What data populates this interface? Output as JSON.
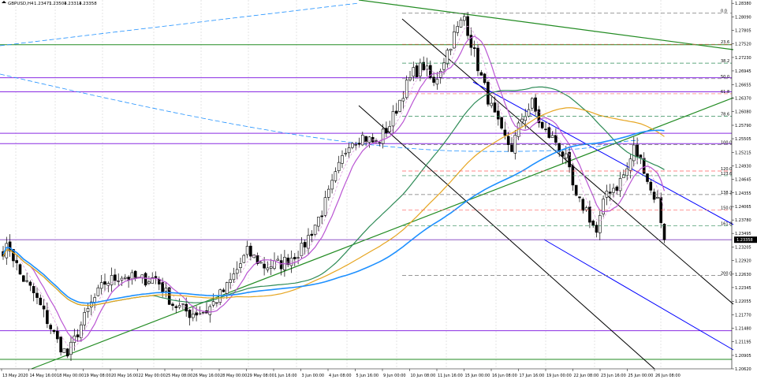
{
  "header": {
    "symbol": "GBPUSD,H4",
    "bid": "1.23471",
    "high": "1.23504",
    "low": "1.23314",
    "close": "1.23358"
  },
  "current_price_label": "1.23358",
  "chart_data": {
    "type": "candlestick",
    "title": "",
    "symbol": "GBPUSD",
    "timeframe": "H4",
    "ylim": [
      1.2062,
      1.2845
    ],
    "yticks": [
      "1.28380",
      "1.28090",
      "1.27805",
      "1.27520",
      "1.27230",
      "1.26945",
      "1.26655",
      "1.26370",
      "1.26080",
      "1.25790",
      "1.25505",
      "1.25215",
      "1.24930",
      "1.24645",
      "1.24355",
      "1.24065",
      "1.23780",
      "1.23495",
      "1.23205",
      "1.22920",
      "1.22630",
      "1.22345",
      "1.22055",
      "1.21770",
      "1.21480",
      "1.21195",
      "1.20905",
      "1.20620"
    ],
    "xlabels": [
      "13 May 2020",
      "14 May 16:00",
      "18 May 00:00",
      "19 May 08:00",
      "20 May 16:00",
      "22 May 00:00",
      "25 May 08:00",
      "26 May 16:00",
      "28 May 00:00",
      "29 May 08:00",
      "1 Jun 16:00",
      "3 Jun 00:00",
      "4 Jun 08:00",
      "5 Jun 16:00",
      "9 Jun 00:00",
      "10 Jun 08:00",
      "11 Jun 16:00",
      "15 Jun 00:00",
      "16 Jun 08:00",
      "17 Jun 16:00",
      "19 Jun 00:00",
      "22 Jun 08:00",
      "23 Jun 16:00",
      "25 Jun 00:00",
      "26 Jun 08:00"
    ],
    "candle_count": 196,
    "anchors": [
      {
        "i": 0,
        "p": 1.2315
      },
      {
        "i": 2,
        "p": 1.2318
      },
      {
        "i": 5,
        "p": 1.2262
      },
      {
        "i": 9,
        "p": 1.2222
      },
      {
        "i": 12,
        "p": 1.218
      },
      {
        "i": 16,
        "p": 1.212
      },
      {
        "i": 19,
        "p": 1.209
      },
      {
        "i": 22,
        "p": 1.214
      },
      {
        "i": 26,
        "p": 1.22
      },
      {
        "i": 30,
        "p": 1.2245
      },
      {
        "i": 35,
        "p": 1.226
      },
      {
        "i": 40,
        "p": 1.225
      },
      {
        "i": 45,
        "p": 1.2255
      },
      {
        "i": 50,
        "p": 1.22
      },
      {
        "i": 55,
        "p": 1.218
      },
      {
        "i": 60,
        "p": 1.2185
      },
      {
        "i": 66,
        "p": 1.2235
      },
      {
        "i": 72,
        "p": 1.231
      },
      {
        "i": 77,
        "p": 1.228
      },
      {
        "i": 82,
        "p": 1.2285
      },
      {
        "i": 88,
        "p": 1.2315
      },
      {
        "i": 94,
        "p": 1.2395
      },
      {
        "i": 98,
        "p": 1.247
      },
      {
        "i": 102,
        "p": 1.2545
      },
      {
        "i": 106,
        "p": 1.2555
      },
      {
        "i": 110,
        "p": 1.254
      },
      {
        "i": 114,
        "p": 1.258
      },
      {
        "i": 118,
        "p": 1.265
      },
      {
        "i": 121,
        "p": 1.269
      },
      {
        "i": 124,
        "p": 1.2705
      },
      {
        "i": 127,
        "p": 1.2665
      },
      {
        "i": 130,
        "p": 1.272
      },
      {
        "i": 133,
        "p": 1.277
      },
      {
        "i": 136,
        "p": 1.281
      },
      {
        "i": 138,
        "p": 1.2755
      },
      {
        "i": 141,
        "p": 1.268
      },
      {
        "i": 144,
        "p": 1.2615
      },
      {
        "i": 147,
        "p": 1.256
      },
      {
        "i": 150,
        "p": 1.253
      },
      {
        "i": 153,
        "p": 1.2595
      },
      {
        "i": 156,
        "p": 1.2625
      },
      {
        "i": 159,
        "p": 1.257
      },
      {
        "i": 163,
        "p": 1.2545
      },
      {
        "i": 166,
        "p": 1.2505
      },
      {
        "i": 169,
        "p": 1.242
      },
      {
        "i": 172,
        "p": 1.24
      },
      {
        "i": 175,
        "p": 1.235
      },
      {
        "i": 178,
        "p": 1.244
      },
      {
        "i": 181,
        "p": 1.245
      },
      {
        "i": 184,
        "p": 1.2485
      },
      {
        "i": 186,
        "p": 1.253
      },
      {
        "i": 189,
        "p": 1.249
      },
      {
        "i": 191,
        "p": 1.244
      },
      {
        "i": 193,
        "p": 1.242
      },
      {
        "i": 195,
        "p": 1.2336
      }
    ],
    "fibonacci": [
      {
        "level": "0.0",
        "price": 1.2817
      },
      {
        "level": "23.6",
        "price": 1.2751
      },
      {
        "level": "38.2",
        "price": 1.2711
      },
      {
        "level": "50.0",
        "price": 1.2678
      },
      {
        "level": "61.8",
        "price": 1.2646
      },
      {
        "level": "78.6",
        "price": 1.2598
      },
      {
        "level": "100.0",
        "price": 1.2538
      },
      {
        "level": "120.0",
        "price": 1.2482
      },
      {
        "level": "123.6",
        "price": 1.2472
      },
      {
        "level": "138.2",
        "price": 1.2432
      },
      {
        "level": "150.0",
        "price": 1.2399
      },
      {
        "level": "161.8",
        "price": 1.2366
      },
      {
        "level": "200.0",
        "price": 1.226
      }
    ],
    "horizontal_lines": [
      {
        "price": 1.275,
        "color": "#228b22"
      },
      {
        "price": 1.268,
        "color": "#8a2be2"
      },
      {
        "price": 1.265,
        "color": "#8a2be2"
      },
      {
        "price": 1.2562,
        "color": "#8a2be2"
      },
      {
        "price": 1.254,
        "color": "#8a2be2"
      },
      {
        "price": 1.2336,
        "color": "#8a2be2"
      },
      {
        "price": 1.2143,
        "color": "#8a2be2"
      },
      {
        "price": 1.2082,
        "color": "#228b22"
      }
    ],
    "colors": {
      "bull_candle": "#ffffff",
      "bear_candle": "#000000",
      "ma_fast": "#ba55d3",
      "ma_slow": "#2e8b57",
      "ma_orange": "#e6a520",
      "ma_blue": "#1e90ff",
      "trend_green": "#228b22",
      "channel_blue": "#0000ff",
      "channel_black": "#000000",
      "fib_line": "#777777",
      "fib_red": "#ff6060",
      "fib_green": "#2e8b57"
    }
  }
}
